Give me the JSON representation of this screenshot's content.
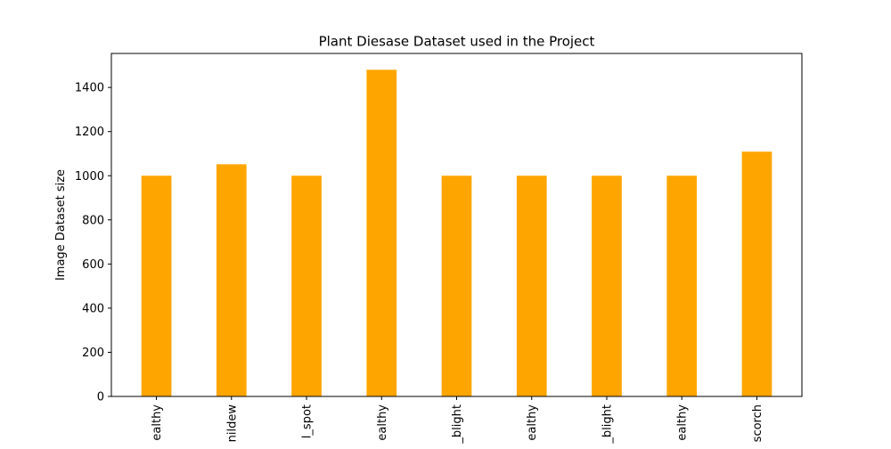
{
  "chart_data": {
    "type": "bar",
    "title": "Plant Diesase Dataset used in the Project",
    "xlabel": "",
    "ylabel": "Image Dataset size",
    "categories": [
      "ealthy",
      "nildew",
      "l_spot",
      "ealthy",
      "_blight",
      "ealthy",
      "_blight",
      "ealthy",
      "scorch"
    ],
    "values": [
      1000,
      1052,
      1000,
      1480,
      1000,
      1000,
      1000,
      1000,
      1109
    ],
    "ylim": [
      0,
      1554
    ],
    "yticks": [
      0,
      200,
      400,
      600,
      800,
      1000,
      1200,
      1400
    ],
    "bar_color": "#ffa500",
    "grid": false,
    "legend": "none"
  }
}
